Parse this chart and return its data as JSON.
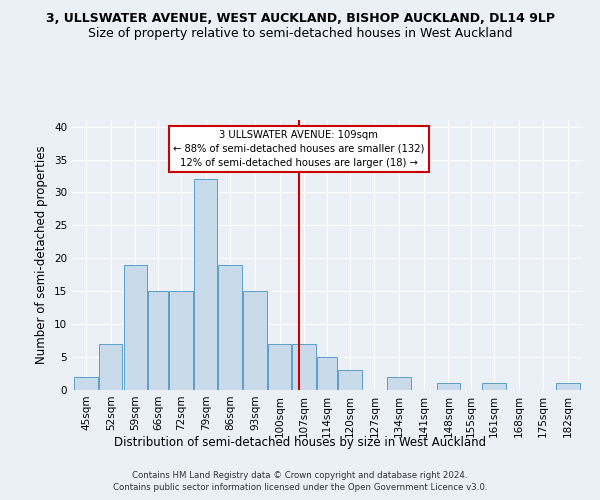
{
  "title1": "3, ULLSWATER AVENUE, WEST AUCKLAND, BISHOP AUCKLAND, DL14 9LP",
  "title2": "Size of property relative to semi-detached houses in West Auckland",
  "xlabel": "Distribution of semi-detached houses by size in West Auckland",
  "ylabel": "Number of semi-detached properties",
  "footnote1": "Contains HM Land Registry data © Crown copyright and database right 2024.",
  "footnote2": "Contains public sector information licensed under the Open Government Licence v3.0.",
  "categories": [
    "45sqm",
    "52sqm",
    "59sqm",
    "66sqm",
    "72sqm",
    "79sqm",
    "86sqm",
    "93sqm",
    "100sqm",
    "107sqm",
    "114sqm",
    "120sqm",
    "127sqm",
    "134sqm",
    "141sqm",
    "148sqm",
    "155sqm",
    "161sqm",
    "168sqm",
    "175sqm",
    "182sqm"
  ],
  "values": [
    2,
    7,
    19,
    15,
    15,
    32,
    19,
    15,
    7,
    7,
    5,
    3,
    0,
    2,
    0,
    1,
    0,
    1,
    0,
    0,
    1
  ],
  "bar_color": "#c9daea",
  "bar_edge_color": "#5a9ec9",
  "property_line_x": 109,
  "bin_edges": [
    45,
    52,
    59,
    66,
    72,
    79,
    86,
    93,
    100,
    107,
    114,
    120,
    127,
    134,
    141,
    148,
    155,
    161,
    168,
    175,
    182,
    189
  ],
  "annotation_title": "3 ULLSWATER AVENUE: 109sqm",
  "annotation_line1": "← 88% of semi-detached houses are smaller (132)",
  "annotation_line2": "12% of semi-detached houses are larger (18) →",
  "annotation_box_color": "#ffffff",
  "annotation_box_edge": "#cc0000",
  "vline_color": "#cc0000",
  "ylim": [
    0,
    41
  ],
  "yticks": [
    0,
    5,
    10,
    15,
    20,
    25,
    30,
    35,
    40
  ],
  "bg_color": "#eaf0f6",
  "grid_color": "#ffffff",
  "title_fontsize": 9,
  "subtitle_fontsize": 9,
  "tick_fontsize": 7.5,
  "ylabel_fontsize": 8.5,
  "xlabel_fontsize": 8.5,
  "footnote_fontsize": 6.2
}
